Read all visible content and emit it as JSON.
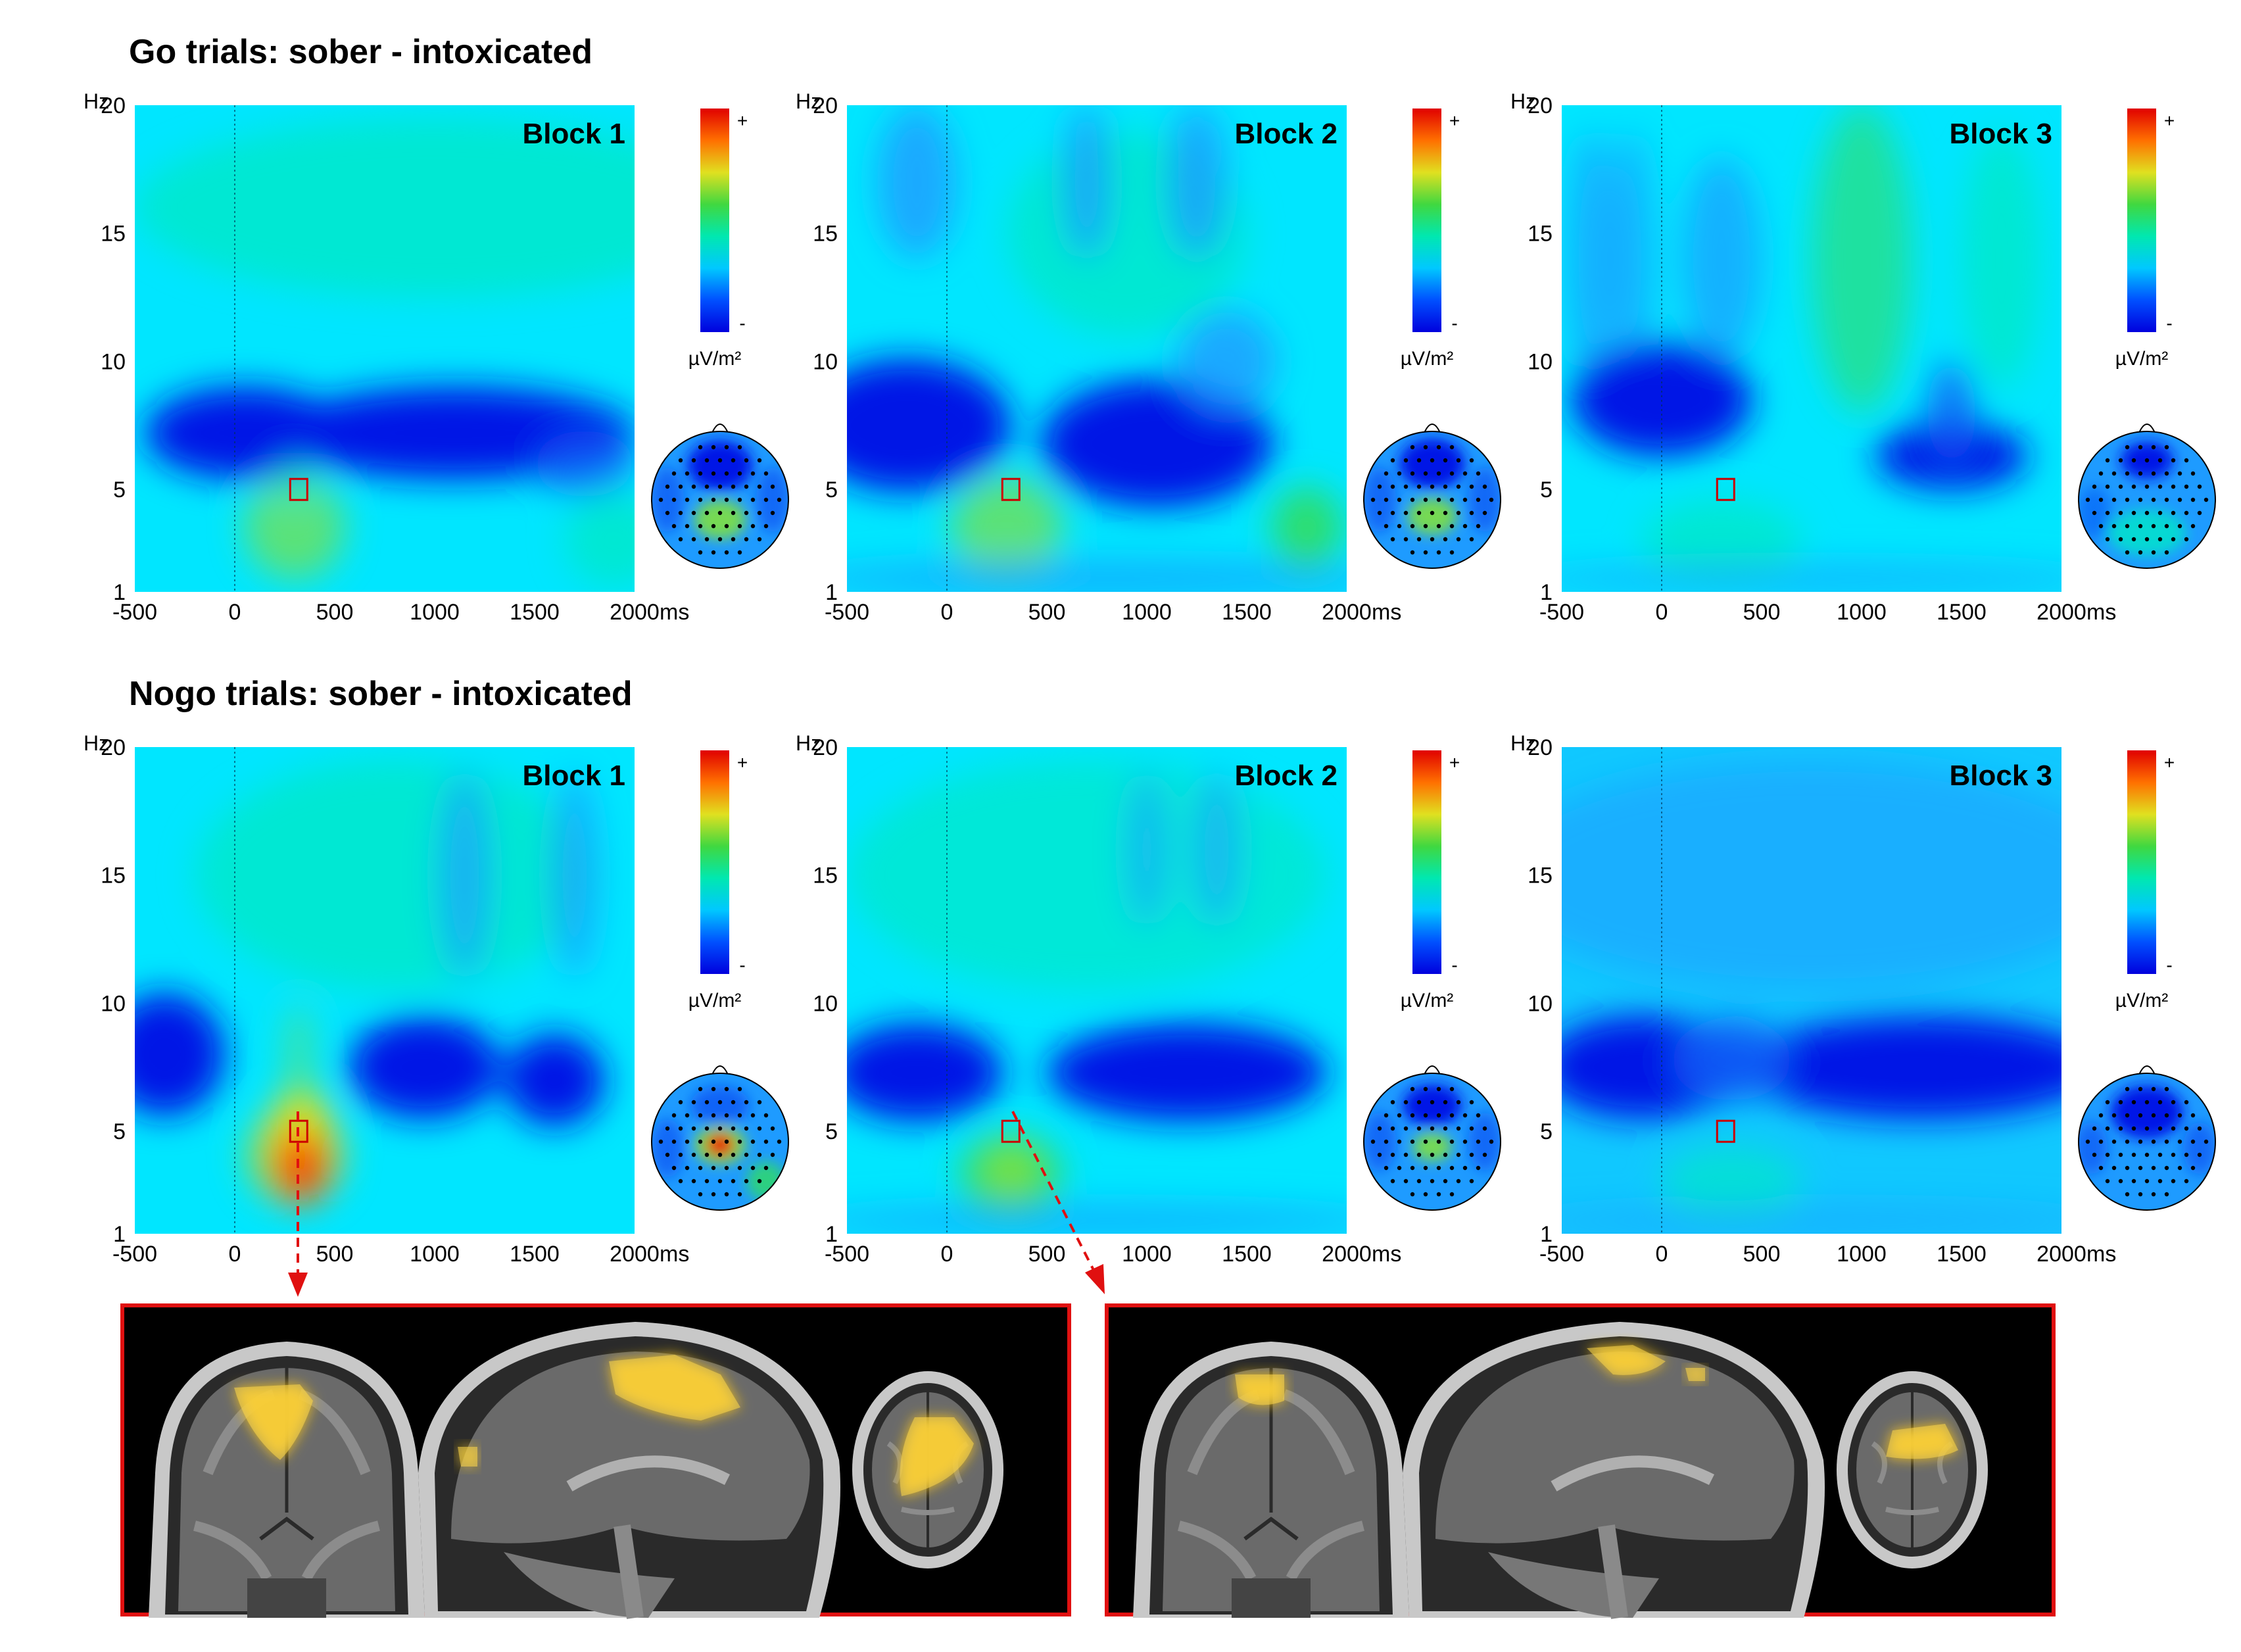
{
  "rows": [
    {
      "title": "Go trials: sober - intoxicated",
      "panels": [
        {
          "label": "Block 1"
        },
        {
          "label": "Block 2"
        },
        {
          "label": "Block 3"
        }
      ]
    },
    {
      "title": "Nogo trials: sober - intoxicated",
      "panels": [
        {
          "label": "Block 1"
        },
        {
          "label": "Block 2"
        },
        {
          "label": "Block 3"
        }
      ]
    }
  ],
  "axes": {
    "y_unit": "Hz",
    "x_unit": "ms",
    "y_ticks": [
      "1",
      "5",
      "10",
      "15",
      "20"
    ],
    "x_ticks": [
      "-500",
      "0",
      "500",
      "1000",
      "1500",
      "2000"
    ]
  },
  "colorbar": {
    "unit": "µV/m²",
    "max_symbol": "+",
    "min_symbol": "-",
    "colors": [
      "#0000dd",
      "#0050ff",
      "#00c8ff",
      "#00e8b0",
      "#40d840",
      "#e0e020",
      "#ff7000",
      "#e00000"
    ]
  },
  "roi_color": "#cc0000",
  "chart_data": {
    "type": "heatmap",
    "description": "Time-frequency difference plots (sober - intoxicated); color scale unitless from - to +",
    "x_range": [
      -500,
      2000
    ],
    "y_range": [
      1,
      20
    ],
    "roi": {
      "time_ms": 320,
      "freq_hz": 5
    },
    "panels": [
      {
        "row": "Go trials",
        "block": "Block 1",
        "dominant": "negative theta band (5-9 Hz)",
        "roi_value": "slightly positive"
      },
      {
        "row": "Go trials",
        "block": "Block 2",
        "dominant": "negative theta band (5-10 Hz)",
        "roi_value": "near zero"
      },
      {
        "row": "Go trials",
        "block": "Block 3",
        "dominant": "weak negative patches",
        "roi_value": "near zero"
      },
      {
        "row": "Nogo trials",
        "block": "Block 1",
        "dominant": "positive theta peak ~200-500 ms",
        "roi_value": "strongly positive"
      },
      {
        "row": "Nogo trials",
        "block": "Block 2",
        "dominant": "moderate positive theta ~200-500 ms",
        "roi_value": "positive"
      },
      {
        "row": "Nogo trials",
        "block": "Block 3",
        "dominant": "broad negative theta band",
        "roi_value": "negative"
      }
    ]
  }
}
